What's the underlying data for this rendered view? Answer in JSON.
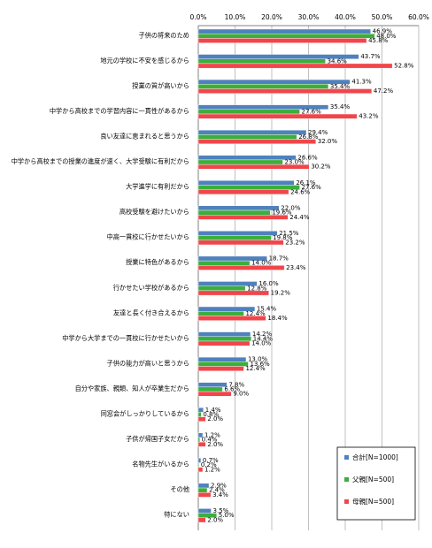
{
  "chart_data": {
    "type": "bar",
    "orientation": "horizontal",
    "categories": [
      "子供の将来のため",
      "地元の学校に不安を感じるから",
      "授業の質が高いから",
      "中学から高校までの学習内容に一貫性があるから",
      "良い友達に恵まれると思うから",
      "中学から高校までの授業の進度が速く、大学受験に有利だから",
      "大学進学に有利だから",
      "高校受験を避けたいから",
      "中高一貫校に行かせたいから",
      "授業に特色があるから",
      "行かせたい学校があるから",
      "友達と長く付き合えるから",
      "中学から大学までの一貫校に行かせたいから",
      "子供の能力が高いと思うから",
      "自分や家族、親類、知人が卒業生だから",
      "同窓会がしっかりしているから",
      "子供が帰国子女だから",
      "名物先生がいるから",
      "その他",
      "特にない"
    ],
    "series": [
      {
        "name": "合計[N=1000]",
        "color": "#4F81BD",
        "values": [
          46.9,
          43.7,
          41.3,
          35.4,
          29.4,
          26.6,
          26.1,
          22.0,
          21.5,
          18.7,
          16.0,
          15.4,
          14.2,
          13.0,
          7.8,
          1.4,
          1.2,
          0.7,
          2.9,
          3.5
        ],
        "labels": [
          "46.9%",
          "43.7%",
          "41.3%",
          "35.4%",
          "29.4%",
          "26.6%",
          "26.1%",
          "22.0%",
          "21.5%",
          "18.7%",
          "16.0%",
          "15.4%",
          "14.2%",
          "13.0%",
          "7.8%",
          "1.4%",
          "1.2%",
          "0.7%",
          "2.9%",
          "3.5%"
        ]
      },
      {
        "name": "父親[N=500]",
        "color": "#3BAF3B",
        "values": [
          48.0,
          34.6,
          35.4,
          27.6,
          26.8,
          23.0,
          27.6,
          19.6,
          19.8,
          14.0,
          12.8,
          12.4,
          14.4,
          13.6,
          6.6,
          0.8,
          0.4,
          0.2,
          2.4,
          5.0
        ],
        "labels": [
          "48.0%",
          "34.6%",
          "35.4%",
          "27.6%",
          "26.8%",
          "23.0%",
          "27.6%",
          "19.6%",
          "19.8%",
          "14.0%",
          "12.8%",
          "12.4%",
          "14.4%",
          "13.6%",
          "6.6%",
          "0.8%",
          "0.4%",
          "0.2%",
          "2.4%",
          "5.0%"
        ]
      },
      {
        "name": "母親[N=500]",
        "color": "#F0464B",
        "values": [
          45.8,
          52.8,
          47.2,
          43.2,
          32.0,
          30.2,
          24.6,
          24.4,
          23.2,
          23.4,
          19.2,
          18.4,
          14.0,
          12.4,
          9.0,
          2.0,
          2.0,
          1.2,
          3.4,
          2.0
        ],
        "labels": [
          "45.8%",
          "52.8%",
          "47.2%",
          "43.2%",
          "32.0%",
          "30.2%",
          "24.6%",
          "24.4%",
          "23.2%",
          "23.4%",
          "19.2%",
          "18.4%",
          "14.0%",
          "12.4%",
          "9.0%",
          "2.0%",
          "2.0%",
          "1.2%",
          "3.4%",
          "2.0%"
        ]
      }
    ],
    "xlim": [
      0,
      60
    ],
    "ticks": [
      0,
      10,
      20,
      30,
      40,
      50,
      60
    ],
    "tick_labels": [
      "0.0%",
      "10.0%",
      "20.0%",
      "30.0%",
      "40.0%",
      "50.0%",
      "60.0%"
    ],
    "grid": true,
    "legend_position": "bottom-right"
  }
}
